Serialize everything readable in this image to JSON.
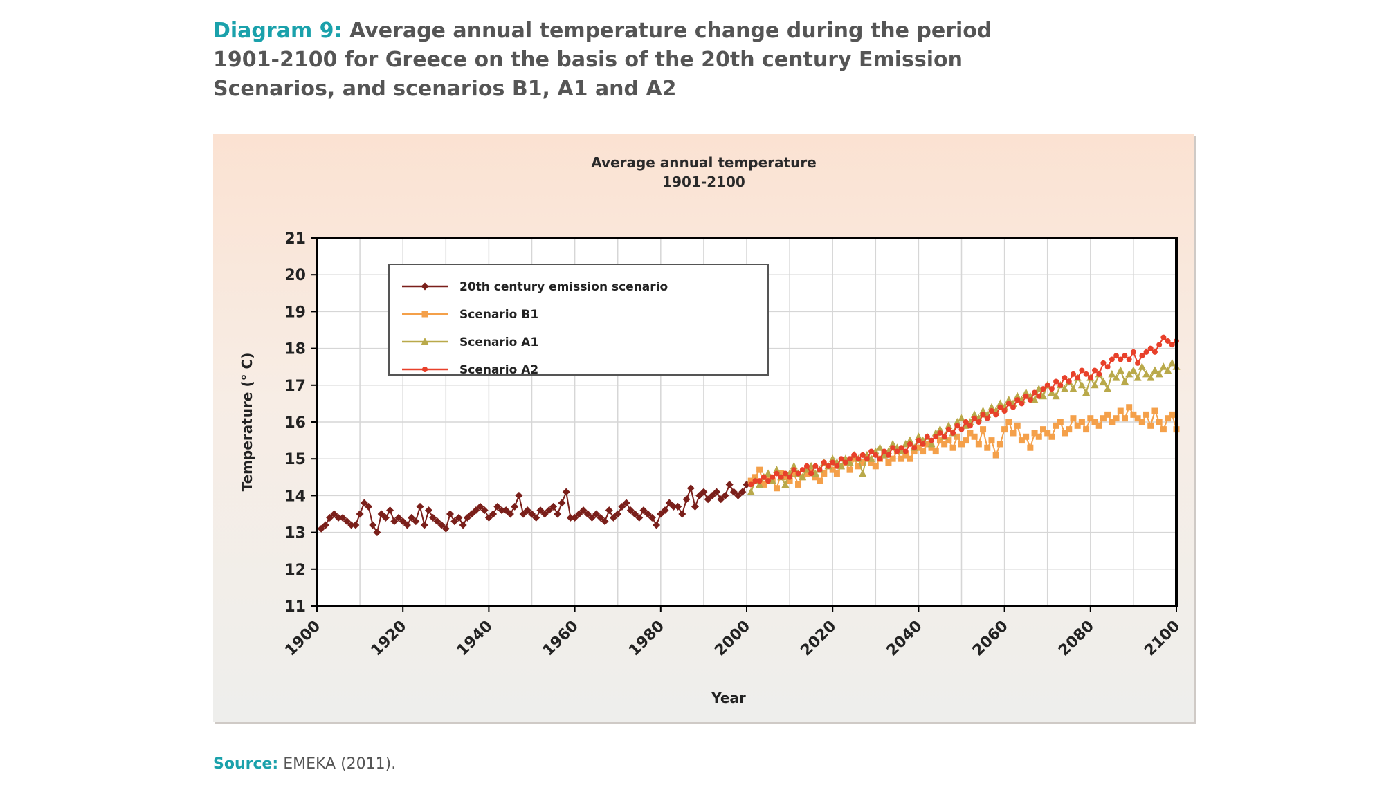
{
  "caption": {
    "label": "Diagram 9:",
    "text": "Average annual temperature change during the period 1901-2100 for Greece on the basis of the 20th century Emission Scenarios, and scenarios B1, A1 and A2"
  },
  "source": {
    "label": "Source:",
    "text": "EMEKA (2011)."
  },
  "colors": {
    "caption_accent": "#1aa1ab",
    "series_20th": "#7a1f1a",
    "series_b1": "#f4a04a",
    "series_a1": "#b9a94a",
    "series_a2": "#e8402a"
  },
  "chart_data": {
    "type": "line",
    "title": "Average annual temperature",
    "subtitle": "1901-2100",
    "xlabel": "Year",
    "ylabel": "Temperature (° C)",
    "xlim": [
      1900,
      2100
    ],
    "ylim": [
      11,
      21
    ],
    "x_ticks": [
      1900,
      1920,
      1940,
      1960,
      1980,
      2000,
      2020,
      2040,
      2060,
      2080,
      2100
    ],
    "y_ticks": [
      11,
      12,
      13,
      14,
      15,
      16,
      17,
      18,
      19,
      20,
      21
    ],
    "grid": true,
    "legend_position": "top-left",
    "series": [
      {
        "name": "20th century emission scenario",
        "marker": "diamond",
        "x_start": 1901,
        "x_end": 2000,
        "y": [
          13.1,
          13.2,
          13.4,
          13.5,
          13.4,
          13.4,
          13.3,
          13.2,
          13.2,
          13.5,
          13.8,
          13.7,
          13.2,
          13.0,
          13.5,
          13.4,
          13.6,
          13.3,
          13.4,
          13.3,
          13.2,
          13.4,
          13.3,
          13.7,
          13.2,
          13.6,
          13.4,
          13.3,
          13.2,
          13.1,
          13.5,
          13.3,
          13.4,
          13.2,
          13.4,
          13.5,
          13.6,
          13.7,
          13.6,
          13.4,
          13.5,
          13.7,
          13.6,
          13.6,
          13.5,
          13.7,
          14.0,
          13.5,
          13.6,
          13.5,
          13.4,
          13.6,
          13.5,
          13.6,
          13.7,
          13.5,
          13.8,
          14.1,
          13.4,
          13.4,
          13.5,
          13.6,
          13.5,
          13.4,
          13.5,
          13.4,
          13.3,
          13.6,
          13.4,
          13.5,
          13.7,
          13.8,
          13.6,
          13.5,
          13.4,
          13.6,
          13.5,
          13.4,
          13.2,
          13.5,
          13.6,
          13.8,
          13.7,
          13.7,
          13.5,
          13.9,
          14.2,
          13.7,
          14.0,
          14.1,
          13.9,
          14.0,
          14.1,
          13.9,
          14.0,
          14.3,
          14.1,
          14.0,
          14.1,
          14.3
        ]
      },
      {
        "name": "Scenario B1",
        "marker": "square",
        "x_start": 2001,
        "x_end": 2100,
        "y": [
          14.4,
          14.5,
          14.7,
          14.3,
          14.5,
          14.4,
          14.2,
          14.6,
          14.5,
          14.4,
          14.6,
          14.3,
          14.5,
          14.6,
          14.7,
          14.5,
          14.4,
          14.6,
          14.8,
          14.7,
          14.6,
          14.8,
          14.9,
          14.7,
          15.0,
          14.8,
          14.9,
          15.0,
          14.9,
          14.8,
          15.0,
          15.1,
          14.9,
          15.0,
          15.2,
          15.0,
          15.1,
          15.0,
          15.2,
          15.3,
          15.2,
          15.4,
          15.3,
          15.2,
          15.5,
          15.4,
          15.5,
          15.3,
          15.6,
          15.4,
          15.5,
          15.7,
          15.6,
          15.4,
          15.8,
          15.3,
          15.5,
          15.1,
          15.4,
          15.8,
          16.0,
          15.7,
          15.9,
          15.5,
          15.6,
          15.3,
          15.7,
          15.6,
          15.8,
          15.7,
          15.6,
          15.9,
          16.0,
          15.7,
          15.8,
          16.1,
          15.9,
          16.0,
          15.8,
          16.1,
          16.0,
          15.9,
          16.1,
          16.2,
          16.0,
          16.1,
          16.3,
          16.1,
          16.4,
          16.2,
          16.1,
          16.0,
          16.2,
          15.9,
          16.3,
          16.0,
          15.8,
          16.1,
          16.2,
          15.8
        ]
      },
      {
        "name": "Scenario A1",
        "marker": "triangle",
        "x_start": 2001,
        "x_end": 2100,
        "y": [
          14.1,
          14.4,
          14.3,
          14.5,
          14.6,
          14.4,
          14.7,
          14.5,
          14.3,
          14.6,
          14.8,
          14.6,
          14.5,
          14.7,
          14.8,
          14.6,
          14.7,
          14.9,
          14.8,
          15.0,
          14.9,
          14.8,
          15.0,
          14.9,
          15.1,
          15.0,
          14.6,
          15.1,
          15.0,
          15.2,
          15.3,
          15.1,
          15.2,
          15.4,
          15.3,
          15.2,
          15.4,
          15.5,
          15.3,
          15.6,
          15.5,
          15.6,
          15.4,
          15.7,
          15.8,
          15.6,
          15.9,
          15.7,
          16.0,
          16.1,
          15.9,
          16.0,
          16.2,
          16.1,
          16.3,
          16.2,
          16.4,
          16.3,
          16.5,
          16.4,
          16.6,
          16.5,
          16.7,
          16.6,
          16.8,
          16.7,
          16.6,
          16.9,
          16.7,
          17.0,
          16.8,
          16.7,
          17.0,
          16.9,
          17.1,
          16.9,
          17.2,
          17.0,
          16.8,
          17.2,
          17.0,
          17.3,
          17.1,
          16.9,
          17.3,
          17.2,
          17.4,
          17.1,
          17.3,
          17.4,
          17.2,
          17.5,
          17.3,
          17.2,
          17.4,
          17.3,
          17.5,
          17.4,
          17.6,
          17.5
        ]
      },
      {
        "name": "Scenario A2",
        "marker": "circle",
        "x_start": 2001,
        "x_end": 2100,
        "y": [
          14.3,
          14.4,
          14.4,
          14.5,
          14.4,
          14.5,
          14.6,
          14.5,
          14.6,
          14.5,
          14.7,
          14.6,
          14.7,
          14.8,
          14.6,
          14.8,
          14.7,
          14.9,
          14.8,
          14.9,
          14.8,
          15.0,
          14.9,
          15.0,
          15.1,
          15.0,
          15.1,
          15.0,
          15.2,
          15.1,
          15.0,
          15.2,
          15.1,
          15.3,
          15.2,
          15.3,
          15.2,
          15.4,
          15.3,
          15.5,
          15.4,
          15.6,
          15.5,
          15.6,
          15.7,
          15.6,
          15.8,
          15.7,
          15.9,
          15.8,
          16.0,
          15.9,
          16.1,
          16.0,
          16.2,
          16.1,
          16.3,
          16.2,
          16.4,
          16.3,
          16.5,
          16.4,
          16.6,
          16.5,
          16.7,
          16.6,
          16.8,
          16.7,
          16.9,
          17.0,
          16.9,
          17.1,
          17.0,
          17.2,
          17.1,
          17.3,
          17.2,
          17.4,
          17.3,
          17.2,
          17.4,
          17.3,
          17.6,
          17.5,
          17.7,
          17.8,
          17.7,
          17.8,
          17.7,
          17.9,
          17.6,
          17.8,
          17.9,
          18.0,
          17.9,
          18.1,
          18.3,
          18.2,
          18.1,
          18.2
        ]
      }
    ]
  }
}
